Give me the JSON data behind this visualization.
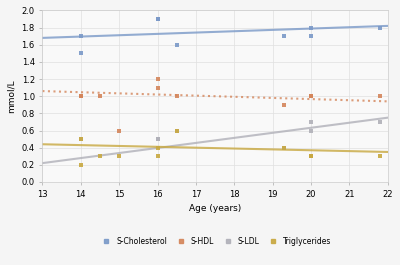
{
  "title": "",
  "xlabel": "Age (years)",
  "ylabel": "mmol/L",
  "xlim": [
    13,
    22
  ],
  "ylim": [
    0,
    2
  ],
  "xticks": [
    13,
    14,
    15,
    16,
    17,
    18,
    19,
    20,
    21,
    22
  ],
  "yticks": [
    0,
    0.2,
    0.4,
    0.6,
    0.8,
    1.0,
    1.2,
    1.4,
    1.6,
    1.8,
    2.0
  ],
  "s_cholesterol_x": [
    14,
    14,
    16,
    16,
    16.5,
    19.3,
    20,
    20,
    21.8
  ],
  "s_cholesterol_y": [
    1.5,
    1.7,
    1.9,
    1.9,
    1.6,
    1.7,
    1.7,
    1.8,
    1.8
  ],
  "s_cholesterol_color": "#7a99c8",
  "s_cholesterol_trend_x": [
    13,
    22
  ],
  "s_cholesterol_trend_y": [
    1.68,
    1.82
  ],
  "s_hdl_x": [
    14,
    14,
    14.5,
    15,
    16,
    16,
    16.5,
    19.3,
    20,
    20,
    21.8
  ],
  "s_hdl_y": [
    1.0,
    1.0,
    1.0,
    0.6,
    1.2,
    1.1,
    1.0,
    0.9,
    1.0,
    1.0,
    1.0
  ],
  "s_hdl_color": "#d4855a",
  "s_hdl_trend_x": [
    13,
    22
  ],
  "s_hdl_trend_y": [
    1.06,
    0.94
  ],
  "s_ldl_x": [
    14,
    16,
    16,
    16.5,
    19.3,
    20,
    20,
    21.8
  ],
  "s_ldl_y": [
    0.5,
    0.5,
    0.5,
    0.6,
    0.4,
    0.6,
    0.7,
    0.7
  ],
  "s_ldl_color": "#b0b0b8",
  "s_ldl_trend_x": [
    13,
    22
  ],
  "s_ldl_trend_y": [
    0.22,
    0.75
  ],
  "triglycerides_x": [
    14,
    14,
    14.5,
    15,
    16,
    16,
    16.5,
    19.3,
    20,
    20,
    21.8
  ],
  "triglycerides_y": [
    0.5,
    0.2,
    0.3,
    0.3,
    0.3,
    0.4,
    0.6,
    0.4,
    0.3,
    0.3,
    0.3
  ],
  "triglycerides_color": "#c8a840",
  "triglycerides_trend_x": [
    13,
    22
  ],
  "triglycerides_trend_y": [
    0.44,
    0.35
  ],
  "background_color": "#f5f5f5",
  "plot_bg_color": "#f9f9f9",
  "grid_color": "#e0e0e0",
  "legend_labels": [
    "S-Cholesterol",
    "S-HDL",
    "S-LDL",
    "Triglycerides"
  ],
  "legend_colors": [
    "#7a99c8",
    "#d4855a",
    "#b0b0b8",
    "#c8a840"
  ]
}
